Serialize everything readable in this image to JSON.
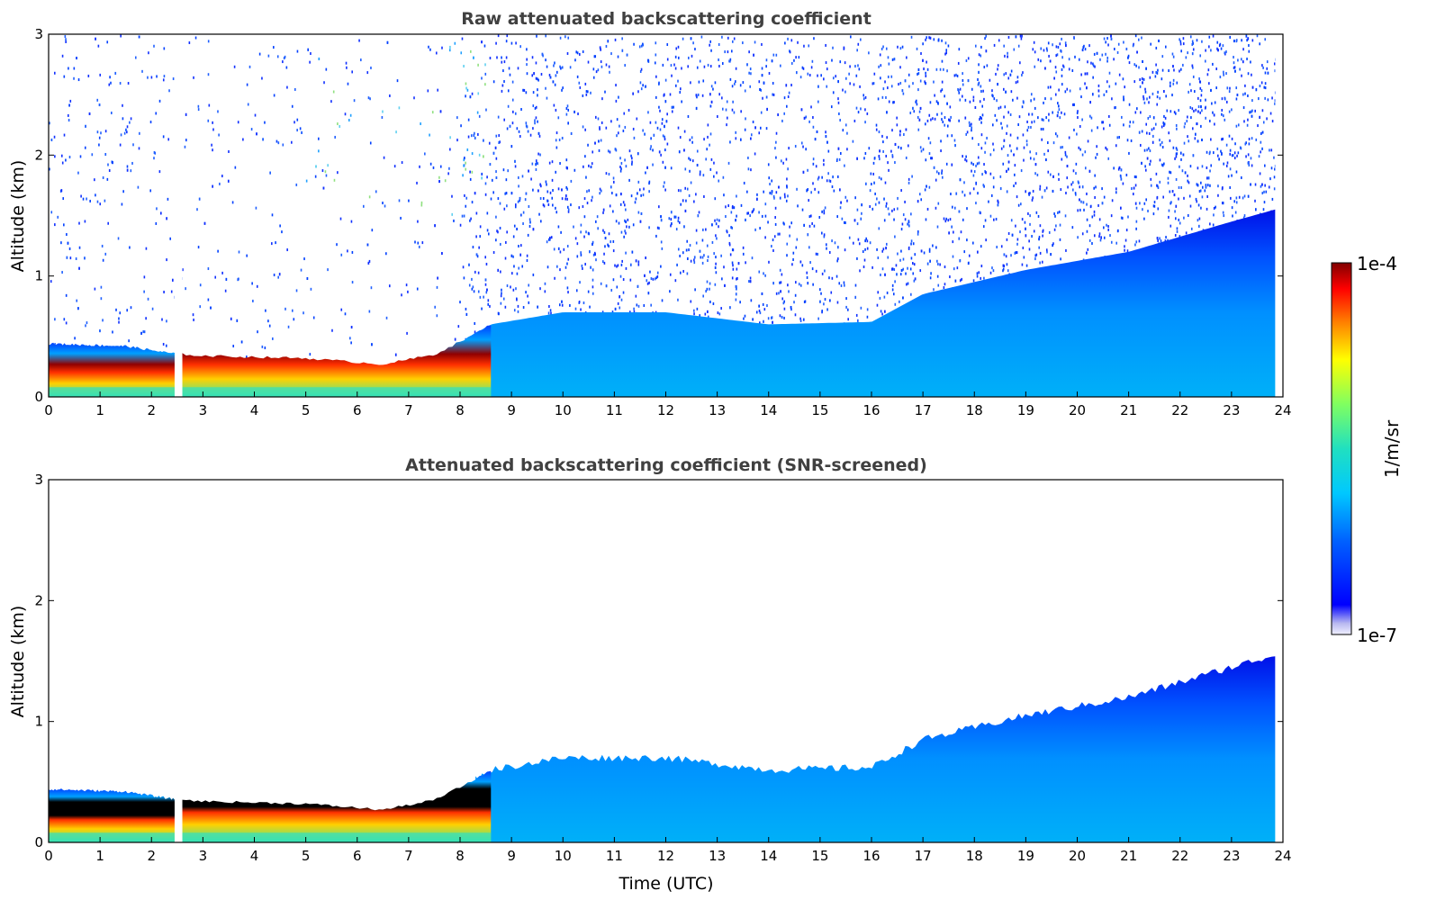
{
  "chart_data": [
    {
      "type": "heatmap",
      "title": "Raw attenuated backscattering coefficient",
      "xlabel": "",
      "ylabel": "Altitude (km)",
      "xlim": [
        0,
        24
      ],
      "ylim": [
        0,
        3
      ],
      "x_ticks": [
        "0",
        "1",
        "2",
        "3",
        "4",
        "5",
        "6",
        "7",
        "8",
        "9",
        "10",
        "11",
        "12",
        "13",
        "14",
        "15",
        "16",
        "17",
        "18",
        "19",
        "20",
        "21",
        "22",
        "23",
        "24"
      ],
      "y_ticks": [
        "0",
        "1",
        "2",
        "3"
      ],
      "screened": false,
      "data_gap_hours": [
        2.45,
        2.6
      ],
      "data_end_hour": 23.85,
      "aerosol_layer_top_km": [
        {
          "t": 0,
          "z": 0.44
        },
        {
          "t": 1.5,
          "z": 0.42
        },
        {
          "t": 2.4,
          "z": 0.36
        },
        {
          "t": 3,
          "z": 0.34
        },
        {
          "t": 5,
          "z": 0.32
        },
        {
          "t": 6.5,
          "z": 0.27
        },
        {
          "t": 7.5,
          "z": 0.35
        },
        {
          "t": 8.2,
          "z": 0.5
        },
        {
          "t": 8.6,
          "z": 0.6
        },
        {
          "t": 10,
          "z": 0.7
        },
        {
          "t": 12,
          "z": 0.7
        },
        {
          "t": 14,
          "z": 0.6
        },
        {
          "t": 16,
          "z": 0.62
        },
        {
          "t": 17,
          "z": 0.85
        },
        {
          "t": 19,
          "z": 1.05
        },
        {
          "t": 21,
          "z": 1.2
        },
        {
          "t": 23,
          "z": 1.45
        },
        {
          "t": 23.85,
          "z": 1.55
        }
      ]
    },
    {
      "type": "heatmap",
      "title": "Attenuated backscattering coefficient (SNR-screened)",
      "xlabel": "Time (UTC)",
      "ylabel": "Altitude (km)",
      "xlim": [
        0,
        24
      ],
      "ylim": [
        0,
        3
      ],
      "x_ticks": [
        "0",
        "1",
        "2",
        "3",
        "4",
        "5",
        "6",
        "7",
        "8",
        "9",
        "10",
        "11",
        "12",
        "13",
        "14",
        "15",
        "16",
        "17",
        "18",
        "19",
        "20",
        "21",
        "22",
        "23",
        "24"
      ],
      "y_ticks": [
        "0",
        "1",
        "2",
        "3"
      ],
      "screened": true,
      "data_gap_hours": [
        2.45,
        2.6
      ],
      "data_end_hour": 23.85
    }
  ],
  "colorbar": {
    "label": "1/m/sr",
    "max_label": "1e-4",
    "min_label": "1e-7",
    "colormap": "jet",
    "scale": "log"
  }
}
